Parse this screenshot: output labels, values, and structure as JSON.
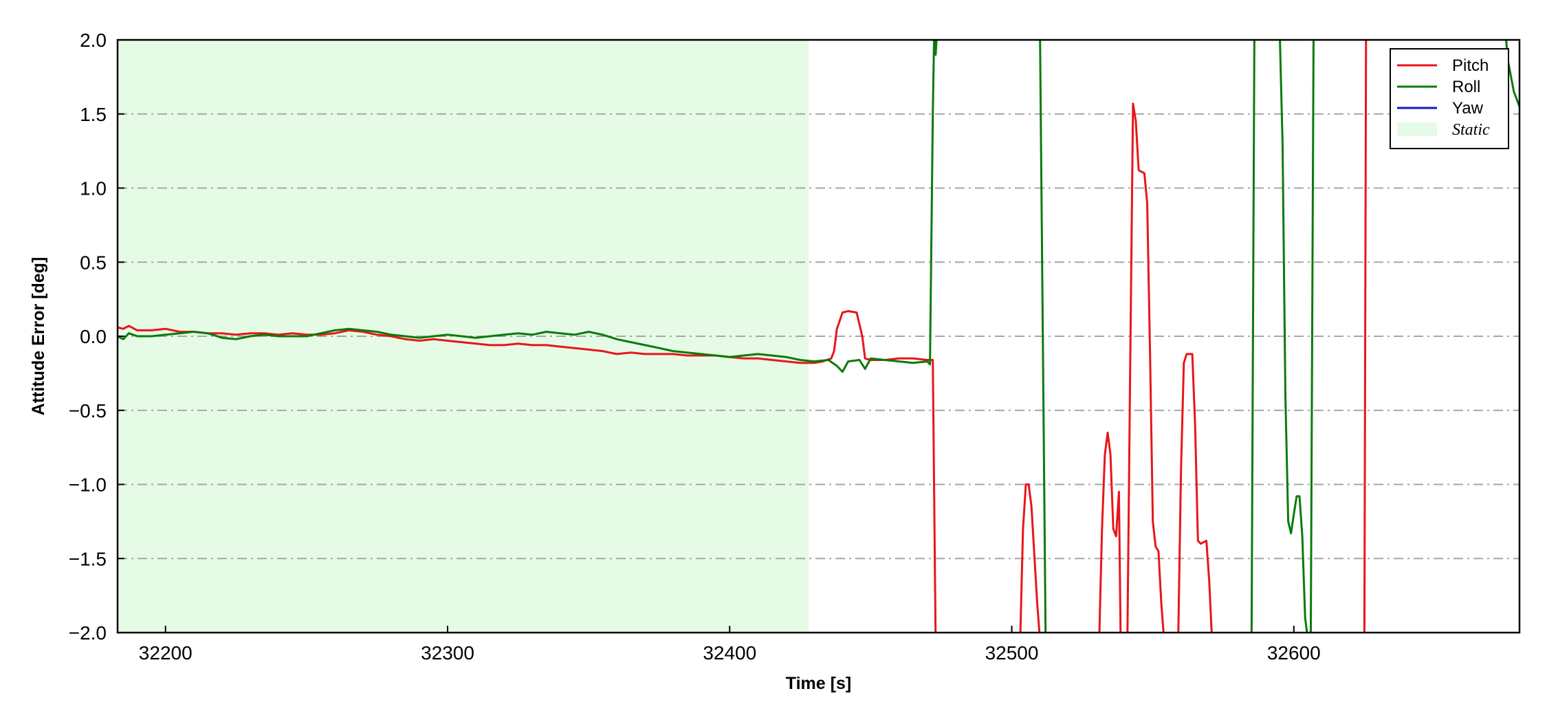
{
  "chart_data": {
    "type": "line",
    "title": "",
    "xlabel": "Time [s]",
    "ylabel": "Attitude Error [deg]",
    "xlim": [
      32183,
      32680
    ],
    "ylim": [
      -2.0,
      2.0
    ],
    "x_ticks": [
      32200,
      32300,
      32400,
      32500,
      32600
    ],
    "x_tick_labels": [
      "32200",
      "32300",
      "32400",
      "32500",
      "32600"
    ],
    "y_ticks": [
      -2.0,
      -1.5,
      -1.0,
      -0.5,
      0.0,
      0.5,
      1.0,
      1.5,
      2.0
    ],
    "y_tick_labels": [
      "−2.0",
      "−1.5",
      "−1.0",
      "−0.5",
      "0.0",
      "0.5",
      "1.0",
      "1.5",
      "2.0"
    ],
    "grid": "horizontal dash-dot",
    "legend_position": "top-right",
    "static_span": {
      "label": "Static",
      "x0": 32183,
      "x1": 32428,
      "color": "#e6fbe6"
    },
    "series": [
      {
        "name": "Pitch",
        "color": "#e8151b",
        "points": [
          [
            32183,
            0.06
          ],
          [
            32185,
            0.05
          ],
          [
            32187,
            0.07
          ],
          [
            32190,
            0.04
          ],
          [
            32195,
            0.04
          ],
          [
            32200,
            0.05
          ],
          [
            32205,
            0.03
          ],
          [
            32210,
            0.03
          ],
          [
            32215,
            0.02
          ],
          [
            32220,
            0.02
          ],
          [
            32225,
            0.01
          ],
          [
            32230,
            0.02
          ],
          [
            32235,
            0.02
          ],
          [
            32240,
            0.01
          ],
          [
            32245,
            0.02
          ],
          [
            32250,
            0.01
          ],
          [
            32255,
            0.01
          ],
          [
            32260,
            0.02
          ],
          [
            32265,
            0.04
          ],
          [
            32270,
            0.03
          ],
          [
            32275,
            0.01
          ],
          [
            32280,
            0.0
          ],
          [
            32285,
            -0.02
          ],
          [
            32290,
            -0.03
          ],
          [
            32295,
            -0.02
          ],
          [
            32300,
            -0.03
          ],
          [
            32305,
            -0.04
          ],
          [
            32310,
            -0.05
          ],
          [
            32315,
            -0.06
          ],
          [
            32320,
            -0.06
          ],
          [
            32325,
            -0.05
          ],
          [
            32330,
            -0.06
          ],
          [
            32335,
            -0.06
          ],
          [
            32340,
            -0.07
          ],
          [
            32345,
            -0.08
          ],
          [
            32350,
            -0.09
          ],
          [
            32355,
            -0.1
          ],
          [
            32360,
            -0.12
          ],
          [
            32365,
            -0.11
          ],
          [
            32370,
            -0.12
          ],
          [
            32375,
            -0.12
          ],
          [
            32380,
            -0.12
          ],
          [
            32385,
            -0.13
          ],
          [
            32390,
            -0.13
          ],
          [
            32395,
            -0.13
          ],
          [
            32400,
            -0.14
          ],
          [
            32405,
            -0.15
          ],
          [
            32410,
            -0.15
          ],
          [
            32415,
            -0.16
          ],
          [
            32420,
            -0.17
          ],
          [
            32425,
            -0.18
          ],
          [
            32430,
            -0.18
          ],
          [
            32433,
            -0.17
          ],
          [
            32436,
            -0.15
          ],
          [
            32437,
            -0.1
          ],
          [
            32438,
            0.05
          ],
          [
            32440,
            0.16
          ],
          [
            32442,
            0.17
          ],
          [
            32445,
            0.16
          ],
          [
            32447,
            0.0
          ],
          [
            32448,
            -0.15
          ],
          [
            32450,
            -0.16
          ],
          [
            32455,
            -0.16
          ],
          [
            32460,
            -0.15
          ],
          [
            32465,
            -0.15
          ],
          [
            32470,
            -0.16
          ],
          [
            32472,
            -0.16
          ],
          [
            32473,
            -2.05
          ],
          [
            32503,
            -2.05
          ],
          [
            32504,
            -1.3
          ],
          [
            32505,
            -1.0
          ],
          [
            32506,
            -1.0
          ],
          [
            32507,
            -1.15
          ],
          [
            32509,
            -1.8
          ],
          [
            32510,
            -2.05
          ],
          [
            32531,
            -2.05
          ],
          [
            32532,
            -1.3
          ],
          [
            32533,
            -0.8
          ],
          [
            32534,
            -0.65
          ],
          [
            32535,
            -0.8
          ],
          [
            32536,
            -1.3
          ],
          [
            32537,
            -1.35
          ],
          [
            32538,
            -1.05
          ],
          [
            32538.6,
            -2.05
          ],
          [
            32541,
            -2.05
          ],
          [
            32542,
            -0.2
          ],
          [
            32543,
            1.57
          ],
          [
            32544,
            1.45
          ],
          [
            32545,
            1.12
          ],
          [
            32547,
            1.1
          ],
          [
            32548,
            0.9
          ],
          [
            32549,
            -0.1
          ],
          [
            32550,
            -1.25
          ],
          [
            32551,
            -1.42
          ],
          [
            32552,
            -1.45
          ],
          [
            32553,
            -1.8
          ],
          [
            32554,
            -2.05
          ],
          [
            32559,
            -2.05
          ],
          [
            32560,
            -0.9
          ],
          [
            32561,
            -0.18
          ],
          [
            32562,
            -0.12
          ],
          [
            32564,
            -0.12
          ],
          [
            32565,
            -0.6
          ],
          [
            32566,
            -1.38
          ],
          [
            32567,
            -1.4
          ],
          [
            32569,
            -1.38
          ],
          [
            32570,
            -1.65
          ],
          [
            32571,
            -2.05
          ],
          [
            32625,
            -2.05
          ],
          [
            32625.6,
            2.05
          ]
        ]
      },
      {
        "name": "Roll",
        "color": "#0a7a0a",
        "points": [
          [
            32183,
            0.0
          ],
          [
            32185,
            -0.02
          ],
          [
            32187,
            0.02
          ],
          [
            32190,
            0.0
          ],
          [
            32195,
            0.0
          ],
          [
            32200,
            0.01
          ],
          [
            32205,
            0.02
          ],
          [
            32210,
            0.03
          ],
          [
            32215,
            0.02
          ],
          [
            32220,
            -0.01
          ],
          [
            32225,
            -0.02
          ],
          [
            32230,
            0.0
          ],
          [
            32235,
            0.01
          ],
          [
            32240,
            0.0
          ],
          [
            32245,
            0.0
          ],
          [
            32250,
            0.0
          ],
          [
            32255,
            0.02
          ],
          [
            32260,
            0.04
          ],
          [
            32265,
            0.05
          ],
          [
            32270,
            0.04
          ],
          [
            32275,
            0.03
          ],
          [
            32280,
            0.01
          ],
          [
            32285,
            0.0
          ],
          [
            32290,
            -0.01
          ],
          [
            32295,
            0.0
          ],
          [
            32300,
            0.01
          ],
          [
            32305,
            0.0
          ],
          [
            32310,
            -0.01
          ],
          [
            32315,
            0.0
          ],
          [
            32320,
            0.01
          ],
          [
            32325,
            0.02
          ],
          [
            32330,
            0.01
          ],
          [
            32335,
            0.03
          ],
          [
            32340,
            0.02
          ],
          [
            32345,
            0.01
          ],
          [
            32350,
            0.03
          ],
          [
            32355,
            0.01
          ],
          [
            32360,
            -0.02
          ],
          [
            32365,
            -0.04
          ],
          [
            32370,
            -0.06
          ],
          [
            32375,
            -0.08
          ],
          [
            32380,
            -0.1
          ],
          [
            32385,
            -0.11
          ],
          [
            32390,
            -0.12
          ],
          [
            32395,
            -0.13
          ],
          [
            32400,
            -0.14
          ],
          [
            32405,
            -0.13
          ],
          [
            32410,
            -0.12
          ],
          [
            32415,
            -0.13
          ],
          [
            32420,
            -0.14
          ],
          [
            32425,
            -0.16
          ],
          [
            32430,
            -0.17
          ],
          [
            32435,
            -0.16
          ],
          [
            32438,
            -0.2
          ],
          [
            32440,
            -0.24
          ],
          [
            32442,
            -0.17
          ],
          [
            32446,
            -0.16
          ],
          [
            32448,
            -0.22
          ],
          [
            32450,
            -0.15
          ],
          [
            32455,
            -0.16
          ],
          [
            32460,
            -0.17
          ],
          [
            32465,
            -0.18
          ],
          [
            32470,
            -0.17
          ],
          [
            32471,
            -0.19
          ],
          [
            32472,
            1.5
          ],
          [
            32472.5,
            2.05
          ],
          [
            32473,
            1.9
          ],
          [
            32473.5,
            2.05
          ],
          [
            32510,
            2.05
          ],
          [
            32512,
            -2.05
          ],
          [
            32585,
            -2.05
          ],
          [
            32586,
            2.05
          ],
          [
            32595,
            2.05
          ],
          [
            32596,
            1.3
          ],
          [
            32597,
            -0.4
          ],
          [
            32598,
            -1.25
          ],
          [
            32599,
            -1.33
          ],
          [
            32600,
            -1.2
          ],
          [
            32601,
            -1.08
          ],
          [
            32602,
            -1.08
          ],
          [
            32603,
            -1.35
          ],
          [
            32604,
            -1.9
          ],
          [
            32605,
            -2.05
          ],
          [
            32606,
            -2.05
          ],
          [
            32607,
            2.05
          ],
          [
            32675,
            2.05
          ],
          [
            32676,
            1.85
          ],
          [
            32678,
            1.65
          ],
          [
            32680,
            1.55
          ]
        ]
      },
      {
        "name": "Yaw",
        "color": "#1016c8",
        "points": []
      }
    ]
  }
}
